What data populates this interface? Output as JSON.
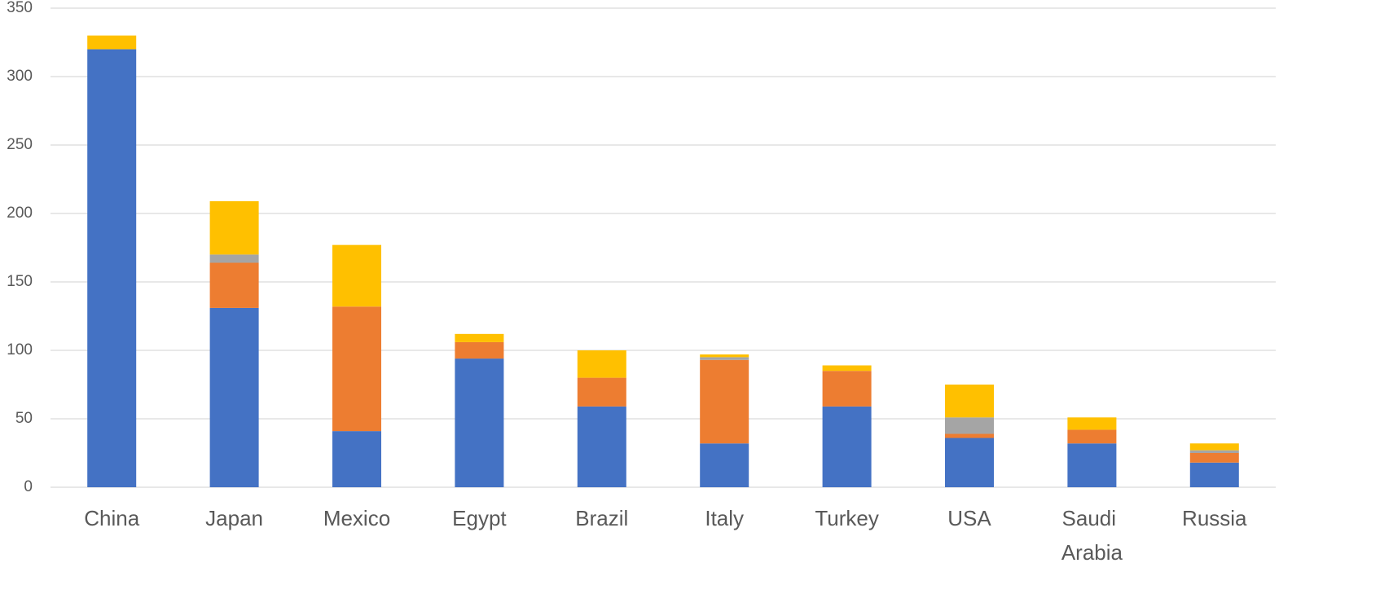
{
  "chart_data": {
    "type": "stacked_bar",
    "categories": [
      "China",
      "Japan",
      "Mexico",
      "Egypt",
      "Brazil",
      "Italy",
      "Turkey",
      "USA",
      "Saudi Arabia",
      "Russia"
    ],
    "series": [
      {
        "color": "#4472c4",
        "values": [
          320,
          131,
          41,
          94,
          59,
          32,
          59,
          36,
          32,
          18
        ]
      },
      {
        "color": "#ed7d31",
        "values": [
          0,
          33,
          91,
          12,
          21,
          61,
          26,
          3,
          10,
          7
        ]
      },
      {
        "color": "#a5a5a5",
        "values": [
          0,
          6,
          0,
          0,
          0,
          2,
          0,
          12,
          0,
          2
        ]
      },
      {
        "color": "#ffc000",
        "values": [
          10,
          39,
          45,
          6,
          20,
          2,
          4,
          24,
          9,
          5
        ]
      }
    ],
    "ylim": [
      0,
      350
    ],
    "yticks": [
      0,
      50,
      100,
      150,
      200,
      250,
      300,
      350
    ],
    "grid": true
  }
}
